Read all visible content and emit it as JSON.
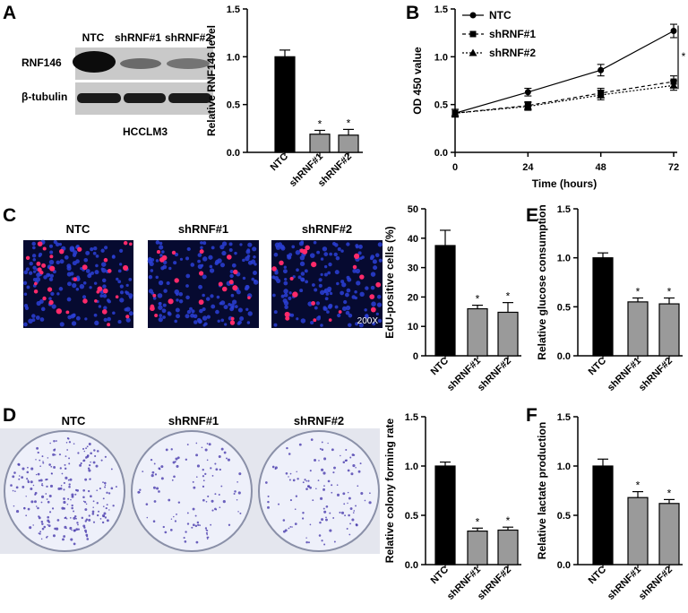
{
  "panels": {
    "A": {
      "letter": "A",
      "blot": {
        "lanes": [
          "NTC",
          "shRNF#1",
          "shRNF#2"
        ],
        "rows": [
          "RNF146",
          "β-tubulin"
        ],
        "cell_line": "HCCLM3"
      }
    },
    "B": {
      "letter": "B"
    },
    "C": {
      "letter": "C",
      "images": [
        "NTC",
        "shRNF#1",
        "shRNF#2"
      ],
      "magnification": "200X"
    },
    "D": {
      "letter": "D",
      "images": [
        "NTC",
        "shRNF#1",
        "shRNF#2"
      ]
    },
    "E": {
      "letter": "E"
    },
    "F": {
      "letter": "F"
    }
  },
  "colors": {
    "ntc_bar": "#000000",
    "sh_bar": "#9a9a9a",
    "edu_blue": "#2b3fd6",
    "edu_red": "#ff2a6a",
    "dish_bg": "#eef0fa",
    "colony": "#4a3cae"
  },
  "chart_data": [
    {
      "id": "a",
      "type": "bar",
      "categories": [
        "NTC",
        "shRNF#1",
        "shRNF#2"
      ],
      "values": [
        1.0,
        0.19,
        0.18
      ],
      "errors": [
        0.07,
        0.04,
        0.06
      ],
      "significance": [
        "",
        "*",
        "*"
      ],
      "ylabel": "Relative RNF146 level",
      "ylim": [
        0,
        1.5
      ],
      "yticks": [
        "0.0",
        "0.5",
        "1.0",
        "1.5"
      ]
    },
    {
      "id": "b",
      "type": "line",
      "x": [
        0,
        24,
        48,
        72
      ],
      "xticks": [
        "0",
        "24",
        "48",
        "72"
      ],
      "xlabel": "Time (hours)",
      "ylabel": "OD 450 value",
      "ylim": [
        0,
        1.5
      ],
      "yticks": [
        "0.0",
        "0.5",
        "1.0",
        "1.5"
      ],
      "series": [
        {
          "name": "NTC",
          "values": [
            0.41,
            0.63,
            0.86,
            1.27
          ],
          "errors": [
            0.04,
            0.04,
            0.06,
            0.07
          ],
          "marker": "circle"
        },
        {
          "name": "shRNF#1",
          "values": [
            0.41,
            0.49,
            0.62,
            0.74
          ],
          "errors": [
            0.04,
            0.04,
            0.05,
            0.06
          ],
          "marker": "square"
        },
        {
          "name": "shRNF#2",
          "values": [
            0.41,
            0.48,
            0.6,
            0.7
          ],
          "errors": [
            0.04,
            0.04,
            0.05,
            0.05
          ],
          "marker": "triangle"
        }
      ],
      "significance": "*",
      "legend": "top-left"
    },
    {
      "id": "c",
      "type": "bar",
      "categories": [
        "NTC",
        "shRNF#1",
        "shRNF#2"
      ],
      "values": [
        37.5,
        16.0,
        14.8
      ],
      "errors": [
        5.2,
        1.2,
        3.3
      ],
      "significance": [
        "",
        "*",
        "*"
      ],
      "ylabel": "EdU-positive cells (%)",
      "ylim": [
        0,
        50
      ],
      "yticks": [
        "0",
        "10",
        "20",
        "30",
        "40",
        "50"
      ]
    },
    {
      "id": "e",
      "type": "bar",
      "categories": [
        "NTC",
        "shRNF#1",
        "shRNF#2"
      ],
      "values": [
        1.0,
        0.55,
        0.53
      ],
      "errors": [
        0.05,
        0.04,
        0.06
      ],
      "significance": [
        "",
        "*",
        "*"
      ],
      "ylabel": "Relative glucose consumption",
      "ylim": [
        0,
        1.5
      ],
      "yticks": [
        "0.0",
        "0.5",
        "1.0",
        "1.5"
      ]
    },
    {
      "id": "d",
      "type": "bar",
      "categories": [
        "NTC",
        "shRNF#1",
        "shRNF#2"
      ],
      "values": [
        1.0,
        0.34,
        0.35
      ],
      "errors": [
        0.04,
        0.03,
        0.03
      ],
      "significance": [
        "",
        "*",
        "*"
      ],
      "ylabel": "Relative colony forming rate",
      "ylim": [
        0,
        1.5
      ],
      "yticks": [
        "0.0",
        "0.5",
        "1.0",
        "1.5"
      ]
    },
    {
      "id": "f",
      "type": "bar",
      "categories": [
        "NTC",
        "shRNF#1",
        "shRNF#2"
      ],
      "values": [
        1.0,
        0.68,
        0.62
      ],
      "errors": [
        0.07,
        0.06,
        0.04
      ],
      "significance": [
        "",
        "*",
        "*"
      ],
      "ylabel": "Relative lactate production",
      "ylim": [
        0,
        1.5
      ],
      "yticks": [
        "0.0",
        "0.5",
        "1.0",
        "1.5"
      ]
    }
  ]
}
